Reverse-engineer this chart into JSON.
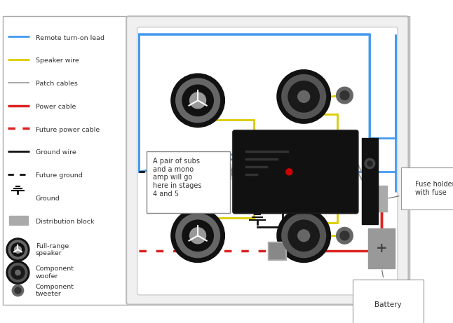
{
  "fig_w": 6.46,
  "fig_h": 4.61,
  "dpi": 100,
  "blue": "#4499ee",
  "yellow": "#ddcc00",
  "red": "#dd2222",
  "gray": "#aaaaaa",
  "black": "#111111",
  "legend_items": [
    {
      "label": "Remote turn-on lead",
      "color": "#4499ee",
      "style": "solid",
      "lw": 2.0
    },
    {
      "label": "Speaker wire",
      "color": "#ddcc00",
      "style": "solid",
      "lw": 2.0
    },
    {
      "label": "Patch cables",
      "color": "#aaaaaa",
      "style": "solid",
      "lw": 1.5
    },
    {
      "label": "Power cable",
      "color": "#dd2222",
      "style": "solid",
      "lw": 2.5
    },
    {
      "label": "Future power cable",
      "color": "#dd2222",
      "style": "dotted",
      "lw": 2.5
    },
    {
      "label": "Ground wire",
      "color": "#111111",
      "style": "solid",
      "lw": 2.0
    },
    {
      "label": "Future ground",
      "color": "#111111",
      "style": "dotted",
      "lw": 2.0
    },
    {
      "label": "Ground",
      "color": "#111111",
      "style": "ground"
    },
    {
      "label": "Distribution block",
      "color": "#aaaaaa",
      "style": "square"
    },
    {
      "label": "Full-range\nspeaker",
      "color": "#222222",
      "style": "full_speaker"
    },
    {
      "label": "Component\nwoofer",
      "color": "#222222",
      "style": "comp_woofer"
    },
    {
      "label": "Component\ntweeter",
      "color": "#555555",
      "style": "comp_tweeter"
    }
  ]
}
